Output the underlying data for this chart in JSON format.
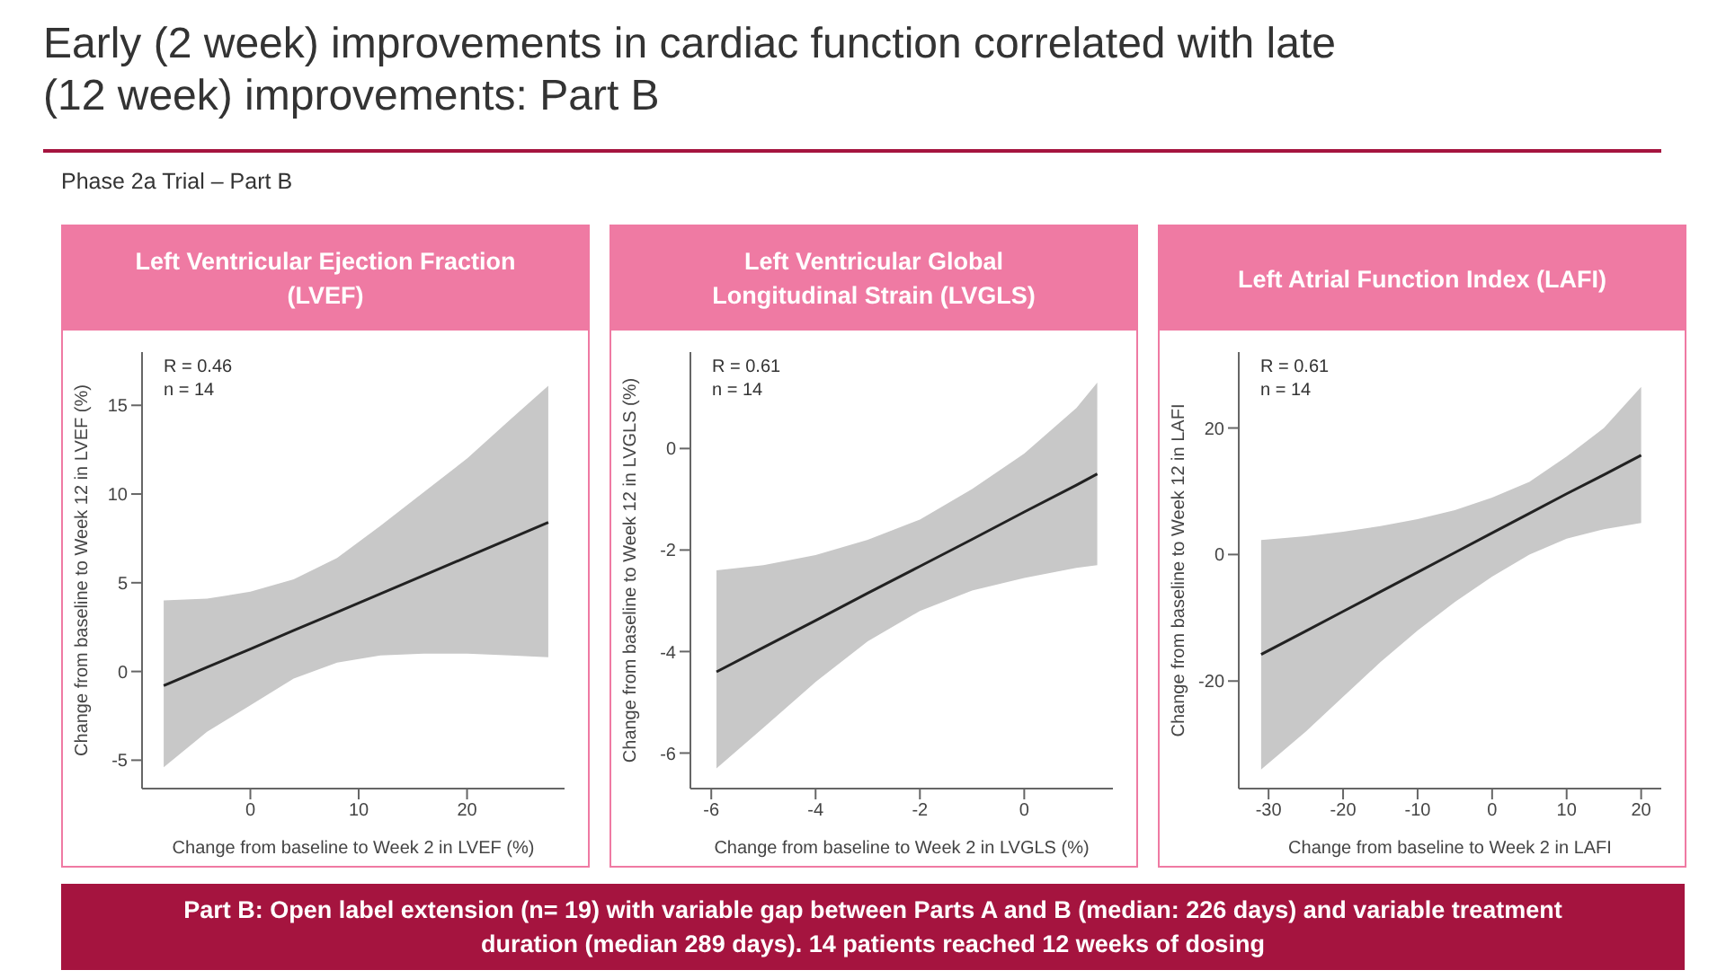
{
  "chart_data": [
    {
      "type": "other",
      "title": "Early (2 week) improvements in cardiac function correlated with late (12 week) improvements: Part B",
      "subtitle": "Phase 2a Trial – Part B",
      "annotations": [
        "Part B: Open label extension (n= 19) with variable gap between Parts A and B (median: 226 days) and variable treatment duration (median 289 days). 14 patients reached 12 weeks of dosing"
      ]
    },
    {
      "type": "line",
      "title": "Left Ventricular Ejection Fraction (LVEF)",
      "xlabel": "Change from baseline to Week 2 in LVEF (%)",
      "ylabel": "Change from baseline to Week 12 in LVEF (%)",
      "annotations": [
        "R = 0.46",
        "n = 14"
      ],
      "x": [
        -8,
        -4,
        0,
        4,
        8,
        12,
        16,
        20,
        24,
        27.5
      ],
      "series": [
        {
          "color": "#222222",
          "values": [
            -0.8,
            0.24,
            1.27,
            2.31,
            3.34,
            4.38,
            5.42,
            6.45,
            7.49,
            8.4
          ],
          "lower": [
            -5.4,
            -3.4,
            -1.9,
            -0.4,
            0.5,
            0.9,
            1.0,
            1.0,
            0.9,
            0.8
          ],
          "upper": [
            4.0,
            4.1,
            4.5,
            5.2,
            6.4,
            8.2,
            10.1,
            12.0,
            14.2,
            16.1
          ]
        }
      ],
      "xlim": [
        -10,
        29
      ],
      "xticks": [
        0,
        10,
        20
      ],
      "ylim": [
        -6.6,
        18
      ],
      "yticks": [
        -5,
        0,
        5,
        10,
        15
      ],
      "grid": false,
      "legend": false,
      "marker": "none",
      "line_style": "solid"
    },
    {
      "type": "line",
      "title": "Left Ventricular Global Longitudinal Strain (LVGLS)",
      "xlabel": "Change from baseline to Week 2 in LVGLS (%)",
      "ylabel": "Change from baseline to Week 12 in LVGLS (%)",
      "annotations": [
        "R = 0.61",
        "n = 14"
      ],
      "x": [
        -5.9,
        -5,
        -4,
        -3,
        -2,
        -1,
        0,
        1,
        1.4
      ],
      "series": [
        {
          "color": "#222222",
          "values": [
            -4.4,
            -3.92,
            -3.39,
            -2.85,
            -2.32,
            -1.79,
            -1.25,
            -0.72,
            -0.5
          ],
          "lower": [
            -6.3,
            -5.5,
            -4.6,
            -3.8,
            -3.2,
            -2.8,
            -2.55,
            -2.35,
            -2.3
          ],
          "upper": [
            -2.4,
            -2.3,
            -2.1,
            -1.8,
            -1.4,
            -0.8,
            -0.1,
            0.8,
            1.3
          ]
        }
      ],
      "xlim": [
        -6.4,
        1.7
      ],
      "xticks": [
        -6,
        -4,
        -2,
        0
      ],
      "ylim": [
        -6.7,
        1.9
      ],
      "yticks": [
        -6,
        -4,
        -2,
        0
      ],
      "grid": false,
      "legend": false,
      "marker": "none",
      "line_style": "solid"
    },
    {
      "type": "line",
      "title": "Left Atrial Function Index (LAFI)",
      "xlabel": "Change from baseline to Week 2 in LAFI",
      "ylabel": "Change from baseline to Week 12 in LAFI",
      "annotations": [
        "R = 0.61",
        "n = 14"
      ],
      "x": [
        -31,
        -25,
        -20,
        -15,
        -10,
        -5,
        0,
        5,
        10,
        15,
        20
      ],
      "series": [
        {
          "color": "#222222",
          "values": [
            -15.8,
            -12.1,
            -9.0,
            -5.9,
            -2.8,
            0.3,
            3.4,
            6.5,
            9.6,
            12.6,
            15.7
          ],
          "lower": [
            -34,
            -28,
            -22.5,
            -17,
            -12,
            -7.5,
            -3.5,
            0,
            2.5,
            4,
            5
          ],
          "upper": [
            2.3,
            2.9,
            3.6,
            4.5,
            5.6,
            7.0,
            9.0,
            11.5,
            15.5,
            20,
            26.5
          ]
        }
      ],
      "xlim": [
        -34,
        22.7
      ],
      "xticks": [
        -30,
        -20,
        -10,
        0,
        10,
        20
      ],
      "ylim": [
        -37,
        32
      ],
      "yticks": [
        -20,
        0,
        20
      ],
      "grid": false,
      "legend": false,
      "marker": "none",
      "line_style": "solid"
    }
  ]
}
